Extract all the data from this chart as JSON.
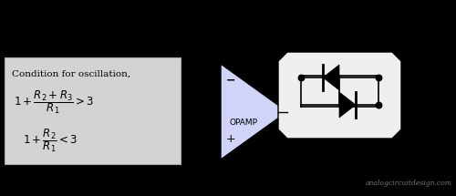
{
  "bg_color": "#000000",
  "text_box_bg": "#d3d3d3",
  "text_box_border": "#aaaaaa",
  "opamp_fill": "#d0d4f8",
  "opamp_stroke": "#000000",
  "clipper_fill": "#efefef",
  "clipper_stroke": "#000000",
  "watermark": "analogcircuitdesign.com",
  "watermark_color": "#777777",
  "minus_label": "−",
  "plus_label": "+",
  "opamp_label": "OPAMP"
}
